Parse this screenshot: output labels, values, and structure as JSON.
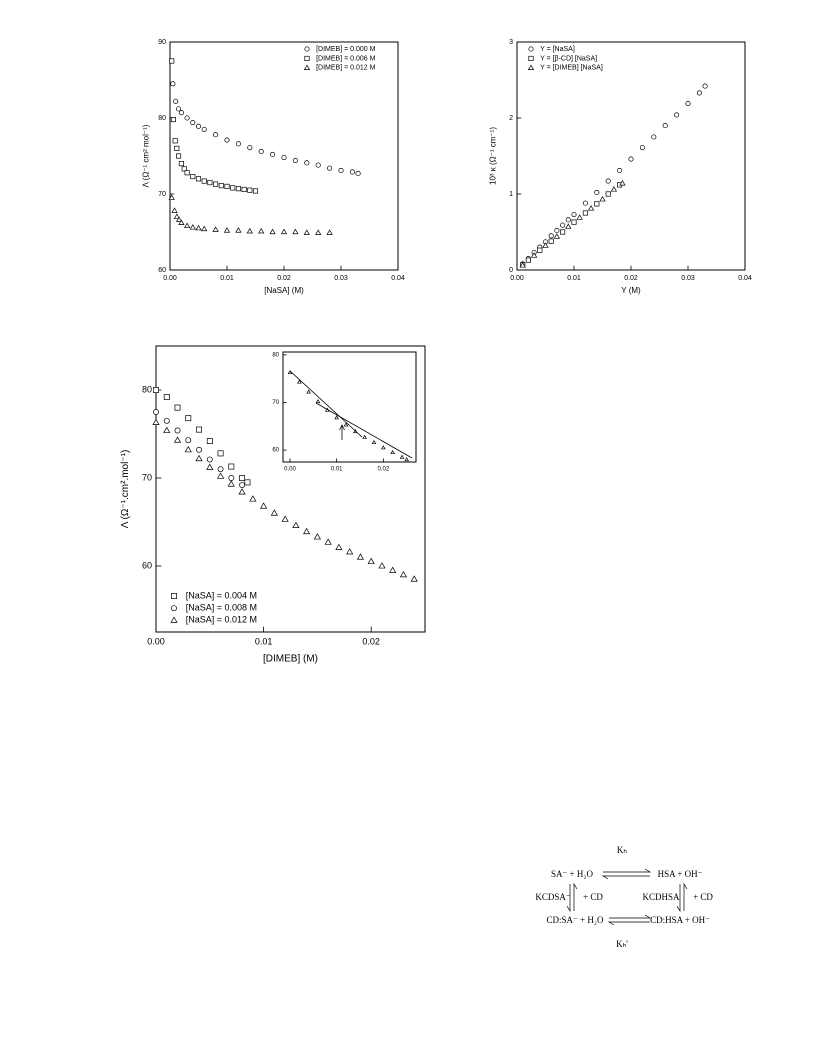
{
  "chart_data": [
    {
      "type": "scatter",
      "xlabel": "[NaSA] (M)",
      "ylabel": "Λ (Ω⁻¹ cm² mol⁻¹)",
      "xlim": [
        0,
        0.04
      ],
      "ylim": [
        60,
        90
      ],
      "xticks": [
        {
          "value": 0,
          "label": "0.00"
        },
        {
          "value": 0.01,
          "label": "0.01"
        },
        {
          "value": 0.02,
          "label": "0.02"
        },
        {
          "value": 0.03,
          "label": "0.03"
        },
        {
          "value": 0.04,
          "label": "0.04"
        }
      ],
      "yticks": [
        60,
        70,
        80,
        90
      ],
      "legend": "upper right",
      "series": [
        {
          "name": "[DIMEB] = 0.000 M",
          "marker": "circle",
          "color": "#000000",
          "x": [
            0.0005,
            0.001,
            0.0015,
            0.002,
            0.003,
            0.004,
            0.005,
            0.006,
            0.008,
            0.01,
            0.012,
            0.014,
            0.016,
            0.018,
            0.02,
            0.022,
            0.024,
            0.026,
            0.028,
            0.03,
            0.032,
            0.033
          ],
          "values": [
            84.5,
            82.2,
            81.2,
            80.7,
            80.0,
            79.4,
            78.9,
            78.5,
            77.8,
            77.1,
            76.6,
            76.1,
            75.6,
            75.2,
            74.8,
            74.4,
            74.1,
            73.8,
            73.4,
            73.1,
            72.9,
            72.7
          ]
        },
        {
          "name": "[DIMEB] = 0.006 M",
          "marker": "square",
          "color": "#000000",
          "x": [
            0.0003,
            0.0006,
            0.0009,
            0.0012,
            0.0015,
            0.002,
            0.0025,
            0.003,
            0.004,
            0.005,
            0.006,
            0.007,
            0.008,
            0.009,
            0.01,
            0.011,
            0.012,
            0.013,
            0.014,
            0.015
          ],
          "values": [
            87.5,
            79.8,
            77.0,
            76.0,
            75.0,
            74.0,
            73.3,
            72.8,
            72.3,
            72.0,
            71.7,
            71.5,
            71.3,
            71.1,
            71.0,
            70.8,
            70.7,
            70.6,
            70.5,
            70.4
          ]
        },
        {
          "name": "[DIMEB] = 0.012 M",
          "marker": "triangle",
          "color": "#000000",
          "x": [
            0.0003,
            0.0008,
            0.0012,
            0.0016,
            0.002,
            0.003,
            0.004,
            0.005,
            0.006,
            0.008,
            0.01,
            0.012,
            0.014,
            0.016,
            0.018,
            0.02,
            0.022,
            0.024,
            0.026,
            0.028
          ],
          "values": [
            69.5,
            67.8,
            67.0,
            66.6,
            66.2,
            65.8,
            65.6,
            65.5,
            65.4,
            65.3,
            65.2,
            65.2,
            65.1,
            65.1,
            65.0,
            65.0,
            65.0,
            64.9,
            64.9,
            64.9
          ]
        }
      ]
    },
    {
      "type": "scatter",
      "xlabel": "Y (M)",
      "ylabel": "10³ κ (Ω⁻¹ cm⁻¹)",
      "xlim": [
        0,
        0.04
      ],
      "ylim": [
        0,
        3
      ],
      "xticks": [
        {
          "value": 0,
          "label": "0.00"
        },
        {
          "value": 0.01,
          "label": "0.01"
        },
        {
          "value": 0.02,
          "label": "0.02"
        },
        {
          "value": 0.03,
          "label": "0.03"
        },
        {
          "value": 0.04,
          "label": "0.04"
        }
      ],
      "yticks": [
        0,
        1,
        2,
        3
      ],
      "legend": "upper left",
      "series": [
        {
          "name": "Y = [NaSA]",
          "marker": "circle",
          "color": "#000000",
          "x": [
            0.001,
            0.002,
            0.003,
            0.004,
            0.005,
            0.006,
            0.007,
            0.008,
            0.009,
            0.01,
            0.012,
            0.014,
            0.016,
            0.018,
            0.02,
            0.022,
            0.024,
            0.026,
            0.028,
            0.03,
            0.032,
            0.033
          ],
          "values": [
            0.08,
            0.15,
            0.23,
            0.3,
            0.37,
            0.45,
            0.52,
            0.59,
            0.66,
            0.73,
            0.88,
            1.02,
            1.17,
            1.31,
            1.46,
            1.61,
            1.75,
            1.9,
            2.04,
            2.19,
            2.33,
            2.42
          ]
        },
        {
          "name": "Y = [β-CD] [NaSA]",
          "marker": "square",
          "color": "#000000",
          "x": [
            0.001,
            0.002,
            0.004,
            0.006,
            0.008,
            0.01,
            0.012,
            0.014,
            0.016,
            0.018
          ],
          "values": [
            0.07,
            0.13,
            0.26,
            0.38,
            0.5,
            0.63,
            0.75,
            0.87,
            1.0,
            1.12
          ]
        },
        {
          "name": "Y = [DIMEB] [NaSA]",
          "marker": "triangle",
          "color": "#000000",
          "x": [
            0.001,
            0.003,
            0.005,
            0.007,
            0.009,
            0.011,
            0.013,
            0.015,
            0.017,
            0.0185
          ],
          "values": [
            0.06,
            0.19,
            0.32,
            0.44,
            0.57,
            0.69,
            0.81,
            0.93,
            1.06,
            1.14
          ]
        }
      ]
    },
    {
      "type": "scatter",
      "xlabel": "[DIMEB] (M)",
      "ylabel": "Λ (Ω⁻¹.cm².mol⁻¹)",
      "xlim": [
        0,
        0.025
      ],
      "ylim": [
        52.5,
        85
      ],
      "xticks": [
        {
          "value": 0,
          "label": "0.00"
        },
        {
          "value": 0.01,
          "label": "0.01"
        },
        {
          "value": 0.02,
          "label": "0.02"
        }
      ],
      "yticks": [
        60,
        70,
        80
      ],
      "legend": "lower left",
      "series": [
        {
          "name": "[NaSA] = 0.004 M",
          "marker": "square",
          "color": "#000000",
          "x": [
            0,
            0.001,
            0.002,
            0.003,
            0.004,
            0.005,
            0.006,
            0.007,
            0.008,
            0.0085
          ],
          "values": [
            80.0,
            79.2,
            78.0,
            76.8,
            75.5,
            74.2,
            72.8,
            71.3,
            70.0,
            69.5
          ]
        },
        {
          "name": "[NaSA] = 0.008 M",
          "marker": "circle",
          "color": "#000000",
          "x": [
            0,
            0.001,
            0.002,
            0.003,
            0.004,
            0.005,
            0.006,
            0.007,
            0.008
          ],
          "values": [
            77.5,
            76.5,
            75.4,
            74.3,
            73.2,
            72.1,
            71.0,
            70.0,
            69.2
          ]
        },
        {
          "name": "[NaSA] = 0.012 M",
          "marker": "triangle",
          "color": "#000000",
          "x": [
            0,
            0.001,
            0.002,
            0.003,
            0.004,
            0.005,
            0.006,
            0.007,
            0.008,
            0.009,
            0.01,
            0.011,
            0.012,
            0.013,
            0.014,
            0.015,
            0.016,
            0.017,
            0.018,
            0.019,
            0.02,
            0.021,
            0.022,
            0.023,
            0.024
          ],
          "values": [
            76.3,
            75.4,
            74.3,
            73.2,
            72.2,
            71.2,
            70.2,
            69.3,
            68.4,
            67.6,
            66.8,
            66.0,
            65.3,
            64.6,
            63.9,
            63.3,
            62.7,
            62.1,
            61.6,
            61.0,
            60.5,
            60.0,
            59.5,
            59.0,
            58.5
          ]
        }
      ]
    },
    {
      "type": "scatter",
      "xlim": [
        -0.0015,
        0.027
      ],
      "ylim": [
        57.5,
        80.6
      ],
      "xticks": [
        {
          "value": 0,
          "label": "0.00"
        },
        {
          "value": 0.01,
          "label": "0.01"
        },
        {
          "value": 0.02,
          "label": "0.02"
        }
      ],
      "yticks": [
        60,
        70,
        80
      ],
      "series": [
        {
          "marker": "triangle",
          "color": "#000000",
          "x": [
            0,
            0.002,
            0.004,
            0.006,
            0.008,
            0.01,
            0.012,
            0.014,
            0.016,
            0.018,
            0.02,
            0.022,
            0.024,
            0.025
          ],
          "values": [
            76.3,
            74.3,
            72.2,
            70.2,
            68.4,
            66.8,
            65.3,
            63.9,
            62.7,
            61.6,
            60.5,
            59.5,
            58.5,
            58.0
          ]
        }
      ]
    }
  ],
  "scheme": {
    "k_top": "Kₕ",
    "left_top": "SA⁻ + H₂O",
    "right_top": "HSA + OH⁻",
    "k_left": "KCDSA⁻",
    "cd_left": "+ CD",
    "k_right": "KCDHSA",
    "cd_right": "+ CD",
    "left_bottom": "CD:SA⁻ + H₂O",
    "right_bottom": "CD:HSA + OH⁻",
    "k_bottom": "Kₕ'"
  }
}
